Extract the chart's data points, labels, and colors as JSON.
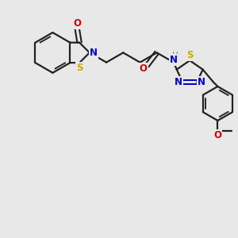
{
  "background_color": "#e8e8e8",
  "line_color": "#222222",
  "bond_lw": 1.6,
  "figsize": [
    3.0,
    3.0
  ],
  "dpi": 100,
  "colors": {
    "N": "#0000cc",
    "O": "#cc0000",
    "S": "#ccaa00",
    "S_teal": "#4a9090",
    "C": "#222222",
    "H": "#5a9090"
  },
  "xlim": [
    0.0,
    10.0
  ],
  "ylim": [
    0.0,
    10.0
  ]
}
